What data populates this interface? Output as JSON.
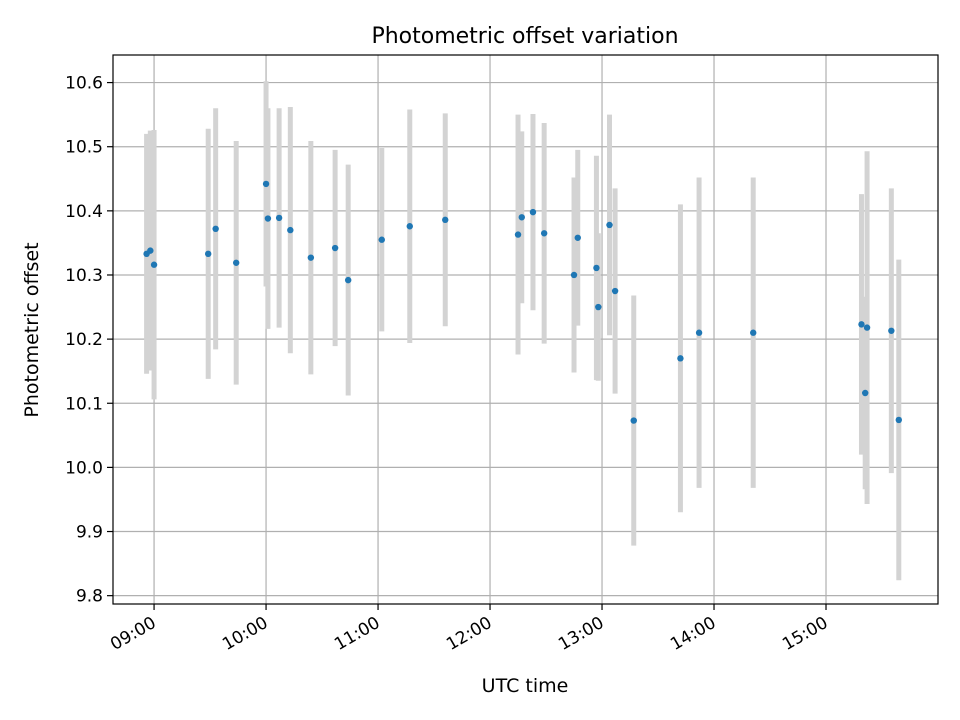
{
  "chart_data": {
    "type": "scatter",
    "title": "Photometric offset variation",
    "xlabel": "UTC time",
    "ylabel": "Photometric offset",
    "x_ticks": [
      "09:00",
      "10:00",
      "11:00",
      "12:00",
      "13:00",
      "14:00",
      "15:00"
    ],
    "y_ticks": [
      "9.8",
      "9.9",
      "10.0",
      "10.1",
      "10.2",
      "10.3",
      "10.4",
      "10.5",
      "10.6"
    ],
    "xlim": [
      "08:38",
      "16:00"
    ],
    "ylim": [
      9.787,
      10.643
    ],
    "grid": true,
    "colors": {
      "point": "#1f77b4",
      "errorbar": "#d3d3d3",
      "grid": "#b0b0b0"
    },
    "points": [
      {
        "x": "08:56",
        "y": 10.333,
        "yerr": 0.187
      },
      {
        "x": "08:58",
        "y": 10.338,
        "yerr": 0.187
      },
      {
        "x": "09:00",
        "y": 10.316,
        "yerr": 0.21
      },
      {
        "x": "09:29",
        "y": 10.333,
        "yerr": 0.195
      },
      {
        "x": "09:33",
        "y": 10.372,
        "yerr": 0.188
      },
      {
        "x": "09:44",
        "y": 10.319,
        "yerr": 0.19
      },
      {
        "x": "10:00",
        "y": 10.442,
        "yerr": 0.16
      },
      {
        "x": "10:01",
        "y": 10.388,
        "yerr": 0.172
      },
      {
        "x": "10:07",
        "y": 10.389,
        "yerr": 0.171
      },
      {
        "x": "10:13",
        "y": 10.37,
        "yerr": 0.192
      },
      {
        "x": "10:24",
        "y": 10.327,
        "yerr": 0.182
      },
      {
        "x": "10:37",
        "y": 10.342,
        "yerr": 0.153
      },
      {
        "x": "10:44",
        "y": 10.292,
        "yerr": 0.18
      },
      {
        "x": "11:02",
        "y": 10.355,
        "yerr": 0.143
      },
      {
        "x": "11:17",
        "y": 10.376,
        "yerr": 0.182
      },
      {
        "x": "11:36",
        "y": 10.386,
        "yerr": 0.166
      },
      {
        "x": "12:15",
        "y": 10.363,
        "yerr": 0.187
      },
      {
        "x": "12:17",
        "y": 10.39,
        "yerr": 0.134
      },
      {
        "x": "12:23",
        "y": 10.398,
        "yerr": 0.153
      },
      {
        "x": "12:29",
        "y": 10.365,
        "yerr": 0.172
      },
      {
        "x": "12:45",
        "y": 10.3,
        "yerr": 0.152
      },
      {
        "x": "12:47",
        "y": 10.358,
        "yerr": 0.137
      },
      {
        "x": "12:57",
        "y": 10.311,
        "yerr": 0.175
      },
      {
        "x": "12:58",
        "y": 10.25,
        "yerr": 0.115
      },
      {
        "x": "13:04",
        "y": 10.378,
        "yerr": 0.172
      },
      {
        "x": "13:07",
        "y": 10.275,
        "yerr": 0.16
      },
      {
        "x": "13:17",
        "y": 10.073,
        "yerr": 0.195
      },
      {
        "x": "13:42",
        "y": 10.17,
        "yerr": 0.24
      },
      {
        "x": "13:52",
        "y": 10.21,
        "yerr": 0.242
      },
      {
        "x": "14:21",
        "y": 10.21,
        "yerr": 0.242
      },
      {
        "x": "15:19",
        "y": 10.223,
        "yerr": 0.203
      },
      {
        "x": "15:21",
        "y": 10.116,
        "yerr": 0.15
      },
      {
        "x": "15:22",
        "y": 10.218,
        "yerr": 0.275
      },
      {
        "x": "15:35",
        "y": 10.213,
        "yerr": 0.222
      },
      {
        "x": "15:39",
        "y": 10.074,
        "yerr": 0.25
      }
    ]
  }
}
